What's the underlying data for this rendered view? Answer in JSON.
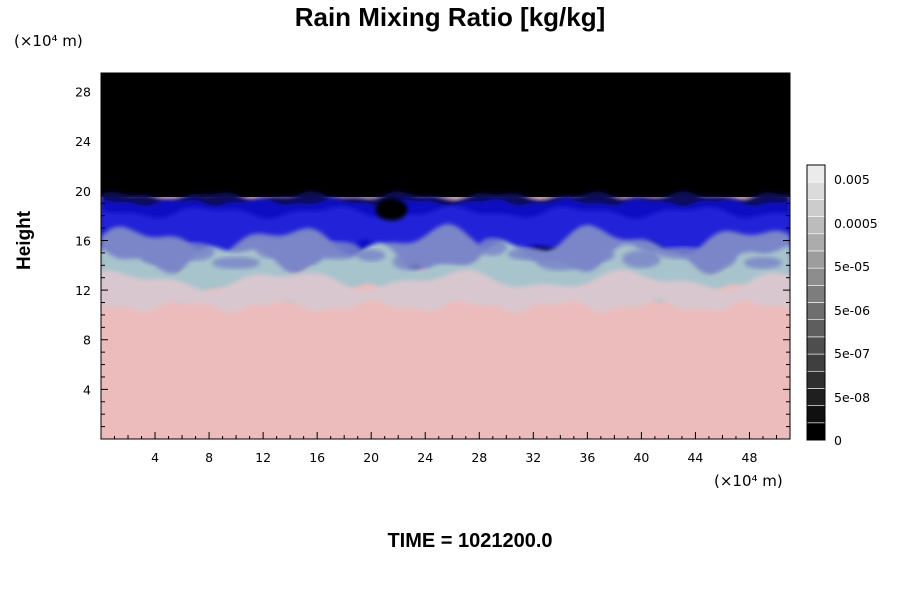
{
  "chart_data": {
    "type": "heatmap",
    "title": "Rain Mixing Ratio [kg/kg]",
    "ylabel": "Height",
    "xlabel": "",
    "x_unit": "(×10⁴ m)",
    "y_unit": "(×10⁴ m)",
    "xlim": [
      0,
      51
    ],
    "ylim": [
      0,
      29.5
    ],
    "x_ticks": [
      4,
      8,
      12,
      16,
      20,
      24,
      28,
      32,
      36,
      40,
      44,
      48
    ],
    "y_ticks": [
      4,
      8,
      12,
      16,
      20,
      24,
      28
    ],
    "layers": [
      {
        "z_bottom": 0,
        "z_top": 11,
        "level": "pink"
      },
      {
        "z_bottom": 11,
        "z_top": 14,
        "level": "light-cyan"
      },
      {
        "z_bottom": 14,
        "z_top": 19.5,
        "level": "blue"
      },
      {
        "z_bottom": 19.5,
        "z_top": 29.5,
        "level": "black"
      }
    ],
    "colorbar": {
      "labels": [
        "0.005",
        "0.0005",
        "5e-05",
        "5e-06",
        "5e-07",
        "5e-08",
        "0"
      ],
      "levels": 16
    },
    "annotation": "TIME = 1021200.0"
  },
  "colors": {
    "pink": "#ecbcbc",
    "light_pink": "#d9c7cf",
    "light_cyan": "#a7c3cc",
    "mid_blue": "#7a86c8",
    "blue": "#2222d8",
    "deep_blue": "#1010c4",
    "navy": "#0a0a5a",
    "black": "#000000"
  }
}
